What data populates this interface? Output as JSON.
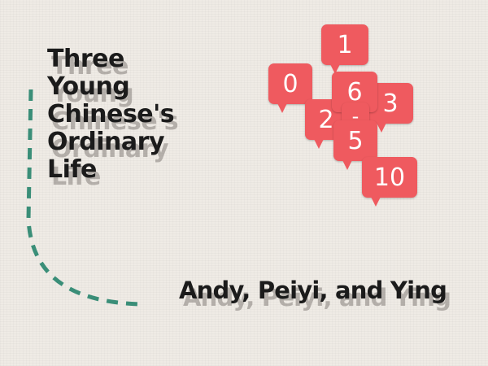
{
  "title": {
    "lines": [
      "Three",
      "Young",
      "Chinese's",
      "Ordinary",
      "Life"
    ]
  },
  "authors": "Andy, Peiyi, and Ying",
  "badges": {
    "b0": "0",
    "b1": "1",
    "b2": "2",
    "b3": "3",
    "b6": "6",
    "dash": "-",
    "b5": "5",
    "b10": "10"
  },
  "colors": {
    "background": "#efebe5",
    "badge": "#ef5a5f",
    "arc": "#3a8e78",
    "text": "#1b1b1b"
  }
}
